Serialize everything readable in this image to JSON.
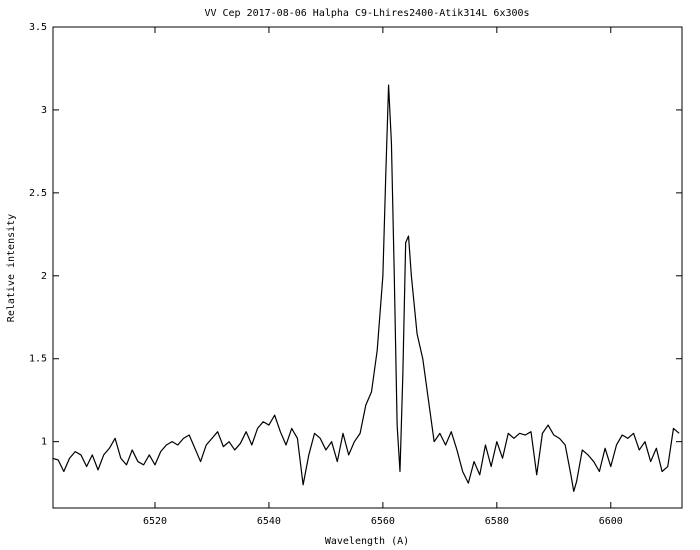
{
  "chart_data": {
    "type": "line",
    "title": "VV Cep 2017-08-06 Halpha C9-Lhires2400-Atik314L 6x300s",
    "x_label": "Wavelength (A)",
    "y_label": "Relative intensity",
    "xlim": [
      6502.1,
      6612.5
    ],
    "ylim": [
      0.6,
      3.5
    ],
    "xticks": [
      6520,
      6540,
      6560,
      6580,
      6600
    ],
    "yticks": [
      1,
      1.5,
      2,
      2.5,
      3,
      3.5
    ],
    "grid": false,
    "series": [
      {
        "color": "#000000",
        "x": [
          6502,
          6503,
          6504,
          6505,
          6506,
          6507,
          6508,
          6509,
          6510,
          6511,
          6512,
          6513,
          6514,
          6515,
          6516,
          6517,
          6518,
          6519,
          6520,
          6521,
          6522,
          6523,
          6524,
          6525,
          6526,
          6527,
          6528,
          6529,
          6530,
          6531,
          6532,
          6533,
          6534,
          6535,
          6536,
          6537,
          6538,
          6539,
          6540,
          6541,
          6542,
          6543,
          6544,
          6545,
          6546,
          6547,
          6548,
          6549,
          6550,
          6551,
          6552,
          6553,
          6554,
          6555,
          6556,
          6557,
          6558,
          6559,
          6560,
          6560.5,
          6561,
          6561.5,
          6562,
          6562.5,
          6563,
          6563.5,
          6564,
          6564.5,
          6565,
          6566,
          6567,
          6568,
          6569,
          6570,
          6571,
          6572,
          6573,
          6574,
          6575,
          6576,
          6577,
          6578,
          6579,
          6580,
          6581,
          6582,
          6583,
          6584,
          6585,
          6586,
          6587,
          6588,
          6589,
          6590,
          6591,
          6592,
          6593,
          6593.5,
          6594,
          6595,
          6596,
          6597,
          6598,
          6599,
          6600,
          6601,
          6602,
          6603,
          6604,
          6605,
          6606,
          6607,
          6608,
          6609,
          6610,
          6611,
          6612
        ],
        "values": [
          0.9,
          0.89,
          0.82,
          0.9,
          0.94,
          0.92,
          0.85,
          0.92,
          0.83,
          0.92,
          0.96,
          1.02,
          0.9,
          0.86,
          0.95,
          0.88,
          0.86,
          0.92,
          0.86,
          0.94,
          0.98,
          1.0,
          0.98,
          1.02,
          1.04,
          0.96,
          0.88,
          0.98,
          1.02,
          1.06,
          0.97,
          1.0,
          0.95,
          0.99,
          1.06,
          0.98,
          1.08,
          1.12,
          1.1,
          1.16,
          1.06,
          0.98,
          1.08,
          1.02,
          0.74,
          0.92,
          1.05,
          1.02,
          0.95,
          1.0,
          0.88,
          1.05,
          0.92,
          1.0,
          1.05,
          1.22,
          1.3,
          1.55,
          2.0,
          2.6,
          3.15,
          2.8,
          2.0,
          1.1,
          0.82,
          1.4,
          2.2,
          2.24,
          2.0,
          1.65,
          1.5,
          1.25,
          1.0,
          1.05,
          0.98,
          1.06,
          0.95,
          0.82,
          0.75,
          0.88,
          0.8,
          0.98,
          0.85,
          1.0,
          0.9,
          1.05,
          1.02,
          1.05,
          1.04,
          1.06,
          0.8,
          1.05,
          1.1,
          1.04,
          1.02,
          0.98,
          0.8,
          0.7,
          0.76,
          0.95,
          0.92,
          0.88,
          0.82,
          0.96,
          0.85,
          0.98,
          1.04,
          1.02,
          1.05,
          0.95,
          1.0,
          0.88,
          0.96,
          0.82,
          0.85,
          1.08,
          1.05
        ]
      }
    ]
  }
}
